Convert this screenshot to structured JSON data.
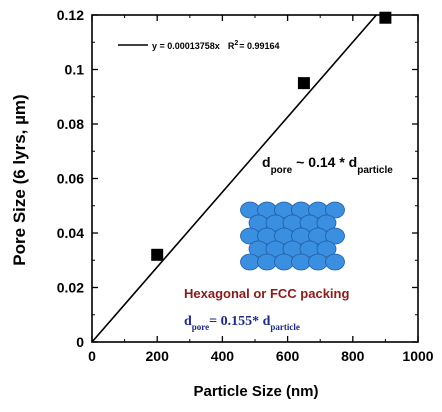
{
  "chart_data": {
    "type": "scatter",
    "xlabel": "Particle Size (nm)",
    "ylabel": "Pore Size (6 lyrs, µm)",
    "xlim": [
      0,
      1000
    ],
    "ylim": [
      0,
      0.12
    ],
    "x_ticks": [
      0,
      200,
      400,
      600,
      800,
      1000
    ],
    "x_tick_labels": [
      "0",
      "200",
      "400",
      "600",
      "800",
      "1000"
    ],
    "y_ticks": [
      0,
      0.02,
      0.04,
      0.06,
      0.08,
      0.1,
      0.12
    ],
    "y_tick_labels": [
      "0",
      "0.02",
      "0.04",
      "0.06",
      "0.08",
      "0.1",
      "0.12"
    ],
    "grid": false,
    "series": [
      {
        "marker": "square",
        "color": "#000000",
        "points": [
          {
            "x": 200,
            "y": 0.032
          },
          {
            "x": 650,
            "y": 0.095
          },
          {
            "x": 900,
            "y": 0.119
          }
        ]
      }
    ],
    "fit_line": {
      "slope": 0.00013758,
      "color": "#000000",
      "legend_label": "y = 0.00013758x",
      "r2_label": "R",
      "r2_sup": "2",
      "r2_value": "= 0.99164"
    },
    "annotations": {
      "relation_a": {
        "lead": "d",
        "lead_sub": "pore",
        "middle": " ~ 0.14 * d",
        "tail_sub": "particle",
        "color": "#000000"
      },
      "packing_label": {
        "text": "Hexagonal or FCC packing",
        "color": "#8b1a1a"
      },
      "relation_b": {
        "lead": "d",
        "lead_sub": "pore",
        "middle": "= 0.155* d",
        "tail_sub": "particle",
        "color": "#1f2a8a"
      }
    },
    "inset_packing": {
      "rows": 5,
      "fill": "#3b8fe0",
      "stroke": "#1d5fa6"
    }
  }
}
